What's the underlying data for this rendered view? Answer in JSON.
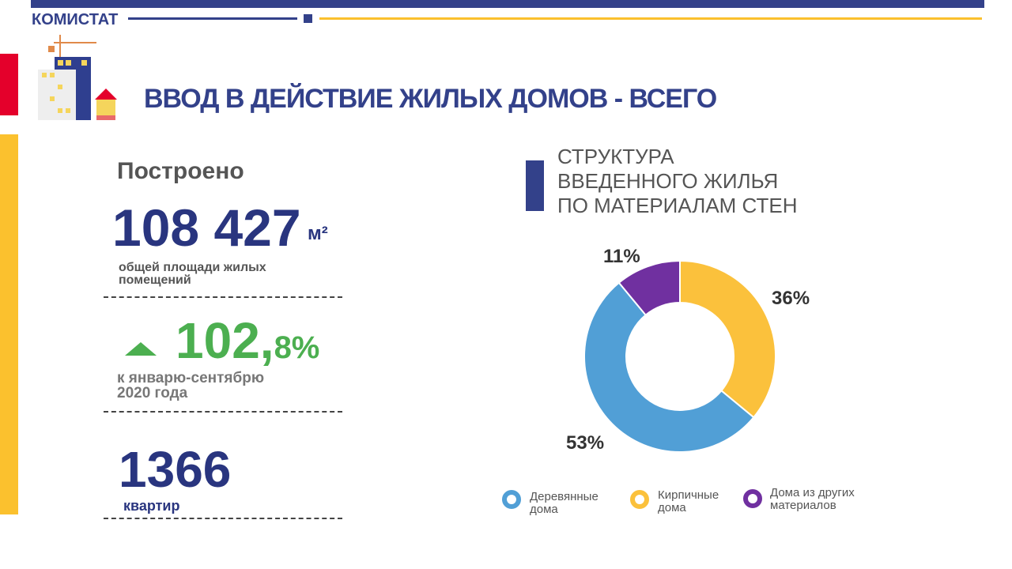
{
  "header": {
    "brand": "КОМИСТАТ",
    "title": "ВВОД В ДЕЙСТВИЕ ЖИЛЫХ ДОМОВ - ВСЕГО"
  },
  "stats": {
    "built_label": "Построено",
    "area_value": "108 427",
    "area_unit": "м²",
    "area_caption_1": "общей площади жилых",
    "area_caption_2": "помещений",
    "growth_int": "102,",
    "growth_frac": "8%",
    "growth_caption_1": "к январю-сентябрю",
    "growth_caption_2": "2020 года",
    "apartments_value": "1366",
    "apartments_label": "квартир"
  },
  "chart_data": {
    "type": "pie",
    "donut": true,
    "title": [
      "СТРУКТУРА",
      "ВВЕДЕННОГО ЖИЛЬЯ",
      "ПО МАТЕРИАЛАМ СТЕН"
    ],
    "slices": [
      {
        "name": "Кирпичные дома",
        "legend": [
          "Кирпичные",
          "дома"
        ],
        "value": 36,
        "label": "36%",
        "color": "#fbc13c"
      },
      {
        "name": "Деревянные дома",
        "legend": [
          "Деревянные",
          "дома"
        ],
        "value": 53,
        "label": "53%",
        "color": "#519fd6"
      },
      {
        "name": "Дома из других материалов",
        "legend": [
          "Дома из других",
          "материалов"
        ],
        "value": 11,
        "label": "11%",
        "color": "#7030a0"
      }
    ],
    "legend_position": "bottom"
  }
}
